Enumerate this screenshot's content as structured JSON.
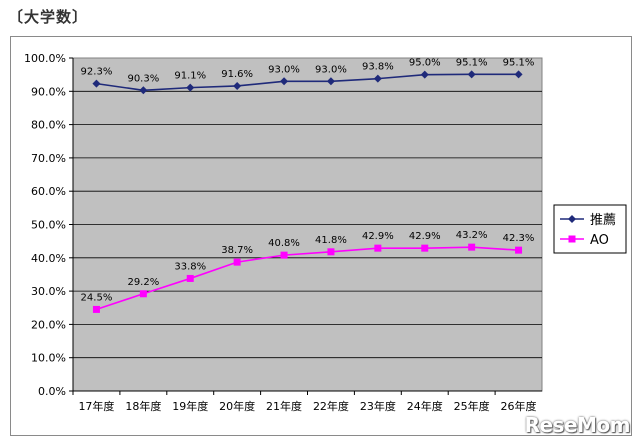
{
  "heading": "〔大学数〕",
  "watermark": "ReseMom",
  "chart_data": {
    "type": "line",
    "categories": [
      "17年度",
      "18年度",
      "19年度",
      "20年度",
      "21年度",
      "22年度",
      "23年度",
      "24年度",
      "25年度",
      "26年度"
    ],
    "ylim": [
      0,
      100
    ],
    "yticks": [
      "0.0%",
      "10.0%",
      "20.0%",
      "30.0%",
      "40.0%",
      "50.0%",
      "60.0%",
      "70.0%",
      "80.0%",
      "90.0%",
      "100.0%"
    ],
    "grid": true,
    "legend_position": "right",
    "series": [
      {
        "name": "推薦",
        "color": "#1f2a7a",
        "marker": "diamond",
        "values": [
          92.3,
          90.3,
          91.1,
          91.6,
          93.0,
          93.0,
          93.8,
          95.0,
          95.1,
          95.1
        ],
        "labels": [
          "92.3%",
          "90.3%",
          "91.1%",
          "91.6%",
          "93.0%",
          "93.0%",
          "93.8%",
          "95.0%",
          "95.1%",
          "95.1%"
        ]
      },
      {
        "name": "AO",
        "color": "#ff00ff",
        "marker": "square",
        "values": [
          24.5,
          29.2,
          33.8,
          38.7,
          40.8,
          41.8,
          42.9,
          42.9,
          43.2,
          42.3
        ],
        "labels": [
          "24.5%",
          "29.2%",
          "33.8%",
          "38.7%",
          "40.8%",
          "41.8%",
          "42.9%",
          "42.9%",
          "43.2%",
          "42.3%"
        ]
      }
    ]
  }
}
